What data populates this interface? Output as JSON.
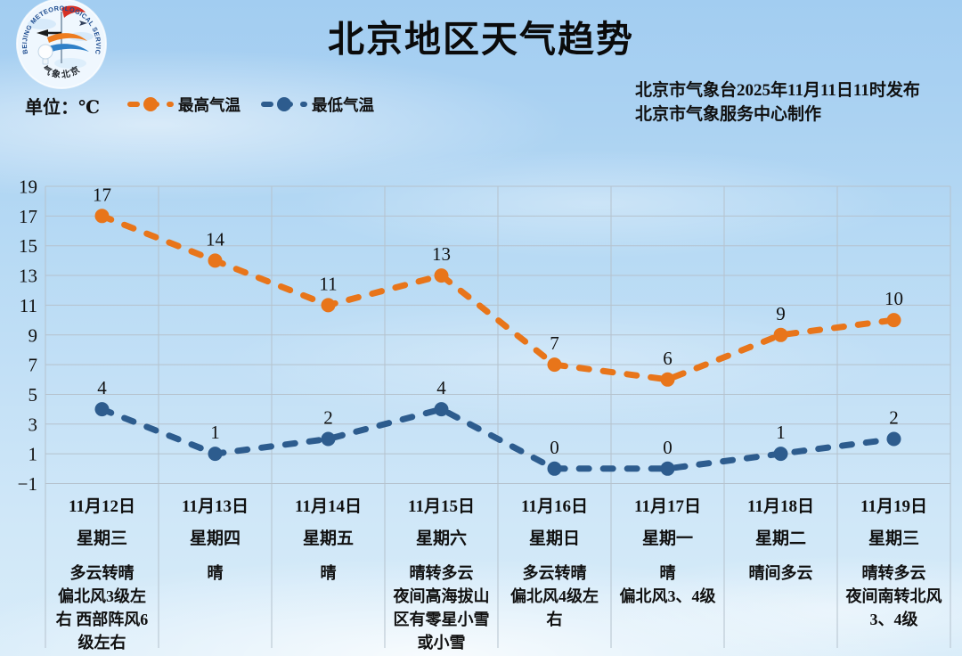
{
  "header": {
    "title": "北京地区天气趋势",
    "unit_label": "单位：℃",
    "issued_line1": "北京市气象台2025年11月11日11时发布",
    "issued_line2": "北京市气象服务中心制作",
    "logo_ring_text": "BEIJING METEOROLOGICAL SERVICE",
    "logo_bottom_text": "气象北京"
  },
  "legend": [
    {
      "label": "最高气温",
      "color": "#e8751a"
    },
    {
      "label": "最低气温",
      "color": "#2d5c8e"
    }
  ],
  "chart_data": {
    "type": "line",
    "title": "北京地区天气趋势",
    "unit": "℃",
    "ylim": [
      -1,
      19
    ],
    "yticks": [
      19,
      17,
      15,
      13,
      11,
      9,
      7,
      5,
      3,
      1,
      -1
    ],
    "grid": true,
    "grid_color": "#b5c2cd",
    "legend_position": "top-left",
    "categories": [
      {
        "date": "11月12日",
        "weekday": "星期三",
        "weather_lines": [
          "多云转晴",
          "偏北风3级左",
          "右 西部阵风6",
          "级左右"
        ]
      },
      {
        "date": "11月13日",
        "weekday": "星期四",
        "weather_lines": [
          "晴"
        ]
      },
      {
        "date": "11月14日",
        "weekday": "星期五",
        "weather_lines": [
          "晴"
        ]
      },
      {
        "date": "11月15日",
        "weekday": "星期六",
        "weather_lines": [
          "晴转多云",
          "夜间高海拔山",
          "区有零星小雪",
          "或小雪"
        ]
      },
      {
        "date": "11月16日",
        "weekday": "星期日",
        "weather_lines": [
          "多云转晴",
          "偏北风4级左",
          "右"
        ]
      },
      {
        "date": "11月17日",
        "weekday": "星期一",
        "weather_lines": [
          "晴",
          "偏北风3、4级"
        ]
      },
      {
        "date": "11月18日",
        "weekday": "星期二",
        "weather_lines": [
          "晴间多云"
        ]
      },
      {
        "date": "11月19日",
        "weekday": "星期三",
        "weather_lines": [
          "晴转多云",
          "夜间南转北风",
          "3、4级"
        ]
      }
    ],
    "series": [
      {
        "name": "最高气温",
        "color": "#e8751a",
        "values": [
          17,
          14,
          11,
          13,
          7,
          6,
          9,
          10
        ]
      },
      {
        "name": "最低气温",
        "color": "#2d5c8e",
        "values": [
          4,
          1,
          2,
          4,
          0,
          0,
          1,
          2
        ]
      }
    ]
  }
}
